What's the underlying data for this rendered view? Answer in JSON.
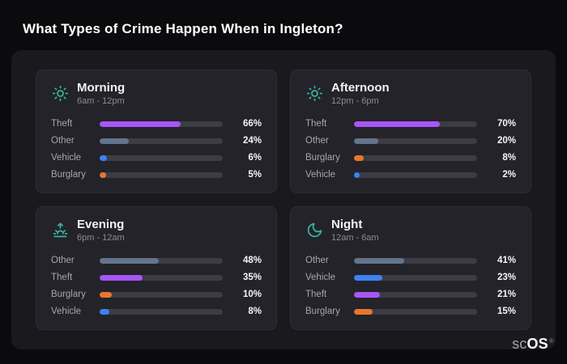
{
  "page": {
    "title": "What Types of Crime Happen When in Ingleton?",
    "logo": {
      "prefix": "sc",
      "suffix": "OS",
      "reg": "®"
    }
  },
  "colors": {
    "Theft": "#a855f7",
    "Other": "#64748b",
    "Vehicle": "#3b82f6",
    "Burglary": "#e8762d",
    "icon": "#3bb3a0",
    "track": "#3c3c44",
    "panel": "#19191e",
    "card": "#232329",
    "page_background": "#0b0b0d"
  },
  "cards": [
    {
      "title": "Morning",
      "subtitle": "6am - 12pm",
      "icon": "sun-icon",
      "rows": [
        {
          "label": "Theft",
          "value": 66
        },
        {
          "label": "Other",
          "value": 24
        },
        {
          "label": "Vehicle",
          "value": 6
        },
        {
          "label": "Burglary",
          "value": 5
        }
      ]
    },
    {
      "title": "Afternoon",
      "subtitle": "12pm - 6pm",
      "icon": "sun-icon",
      "rows": [
        {
          "label": "Theft",
          "value": 70
        },
        {
          "label": "Other",
          "value": 20
        },
        {
          "label": "Burglary",
          "value": 8
        },
        {
          "label": "Vehicle",
          "value": 2
        }
      ]
    },
    {
      "title": "Evening",
      "subtitle": "6pm - 12am",
      "icon": "sunrise-icon",
      "rows": [
        {
          "label": "Other",
          "value": 48
        },
        {
          "label": "Theft",
          "value": 35
        },
        {
          "label": "Burglary",
          "value": 10
        },
        {
          "label": "Vehicle",
          "value": 8
        }
      ]
    },
    {
      "title": "Night",
      "subtitle": "12am - 6am",
      "icon": "moon-icon",
      "rows": [
        {
          "label": "Other",
          "value": 41
        },
        {
          "label": "Vehicle",
          "value": 23
        },
        {
          "label": "Theft",
          "value": 21
        },
        {
          "label": "Burglary",
          "value": 15
        }
      ]
    }
  ],
  "chart_data": [
    {
      "type": "bar",
      "orientation": "horizontal",
      "title": "Morning (6am - 12pm)",
      "categories": [
        "Theft",
        "Other",
        "Vehicle",
        "Burglary"
      ],
      "values": [
        66,
        24,
        6,
        5
      ],
      "unit": "%",
      "xlim": [
        0,
        100
      ],
      "grid": false,
      "legend": false
    },
    {
      "type": "bar",
      "orientation": "horizontal",
      "title": "Afternoon (12pm - 6pm)",
      "categories": [
        "Theft",
        "Other",
        "Burglary",
        "Vehicle"
      ],
      "values": [
        70,
        20,
        8,
        2
      ],
      "unit": "%",
      "xlim": [
        0,
        100
      ],
      "grid": false,
      "legend": false
    },
    {
      "type": "bar",
      "orientation": "horizontal",
      "title": "Evening (6pm - 12am)",
      "categories": [
        "Other",
        "Theft",
        "Burglary",
        "Vehicle"
      ],
      "values": [
        48,
        35,
        10,
        8
      ],
      "unit": "%",
      "xlim": [
        0,
        100
      ],
      "grid": false,
      "legend": false
    },
    {
      "type": "bar",
      "orientation": "horizontal",
      "title": "Night (12am - 6am)",
      "categories": [
        "Other",
        "Vehicle",
        "Theft",
        "Burglary"
      ],
      "values": [
        41,
        23,
        21,
        15
      ],
      "unit": "%",
      "xlim": [
        0,
        100
      ],
      "grid": false,
      "legend": false
    }
  ]
}
